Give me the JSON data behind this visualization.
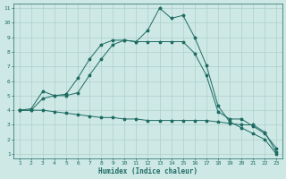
{
  "xlabel": "Humidex (Indice chaleur)",
  "bg_color": "#cde8e5",
  "grid_color": "#aed0cc",
  "line_color": "#1e6b62",
  "xlim": [
    0.5,
    23.5
  ],
  "ylim": [
    0.7,
    11.3
  ],
  "xticks": [
    1,
    2,
    3,
    4,
    5,
    6,
    7,
    8,
    9,
    10,
    11,
    12,
    13,
    14,
    15,
    16,
    17,
    18,
    19,
    20,
    21,
    22,
    23
  ],
  "yticks": [
    1,
    2,
    3,
    4,
    5,
    6,
    7,
    8,
    9,
    10,
    11
  ],
  "line1_x": [
    1,
    2,
    3,
    4,
    5,
    6,
    7,
    8,
    9,
    10,
    11,
    12,
    13,
    14,
    15,
    16,
    17,
    18,
    19,
    20,
    21,
    22,
    23
  ],
  "line1_y": [
    4.0,
    4.1,
    5.3,
    5.0,
    5.1,
    6.2,
    7.5,
    8.5,
    8.8,
    8.8,
    8.7,
    9.5,
    11.0,
    10.3,
    10.5,
    9.0,
    7.1,
    4.3,
    3.2,
    2.8,
    2.4,
    2.0,
    1.0
  ],
  "line2_x": [
    1,
    2,
    3,
    4,
    5,
    6,
    7,
    8,
    9,
    10,
    11,
    12,
    13,
    14,
    15,
    16,
    17,
    18,
    19,
    20,
    21,
    22,
    23
  ],
  "line2_y": [
    4.0,
    4.0,
    4.8,
    5.0,
    5.0,
    5.2,
    6.4,
    7.5,
    8.5,
    8.8,
    8.7,
    8.7,
    8.7,
    8.7,
    8.7,
    7.9,
    6.4,
    3.9,
    3.4,
    3.4,
    2.9,
    2.4,
    1.4
  ],
  "line3_x": [
    1,
    2,
    3,
    4,
    5,
    6,
    7,
    8,
    9,
    10,
    11,
    12,
    13,
    14,
    15,
    16,
    17,
    18,
    19,
    20,
    21,
    22,
    23
  ],
  "line3_y": [
    4.0,
    4.0,
    4.0,
    3.9,
    3.8,
    3.7,
    3.6,
    3.5,
    3.5,
    3.4,
    3.4,
    3.3,
    3.3,
    3.3,
    3.3,
    3.3,
    3.3,
    3.2,
    3.1,
    3.0,
    3.0,
    2.5,
    1.1
  ]
}
